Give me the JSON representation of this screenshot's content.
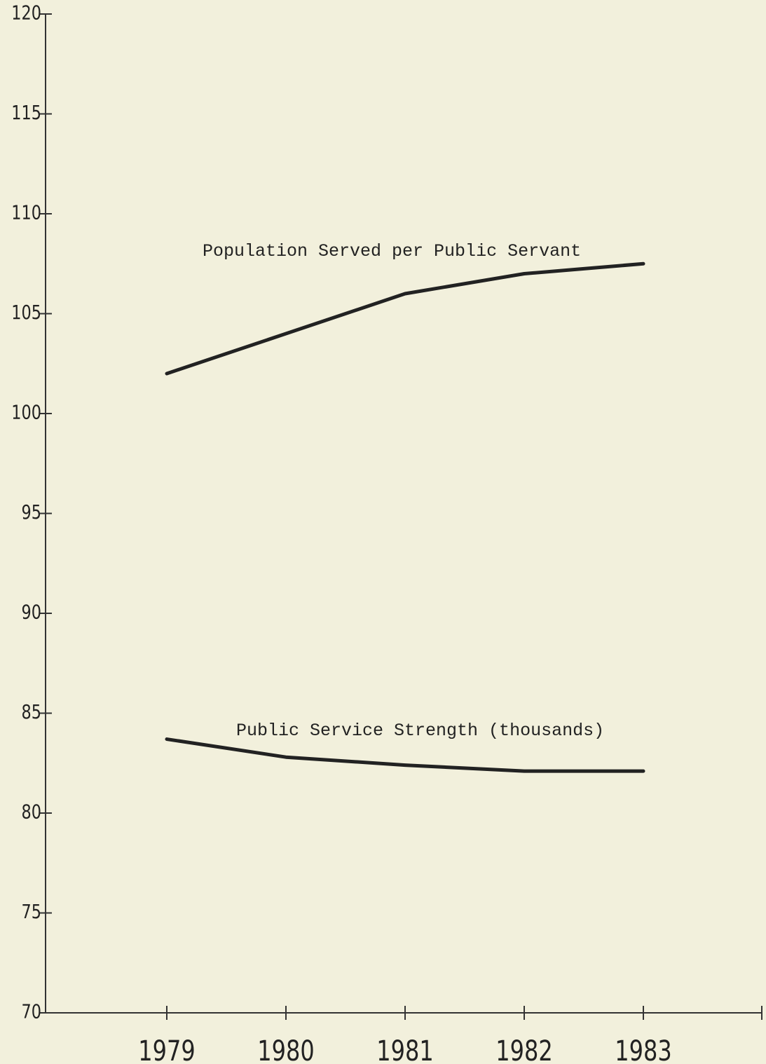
{
  "chart_data": {
    "type": "line",
    "categories": [
      "1979",
      "1980",
      "1981",
      "1982",
      "1983"
    ],
    "series": [
      {
        "name": "Population Served per Public Servant",
        "color": "#222222",
        "values": [
          102,
          104,
          106,
          107,
          107.5
        ]
      },
      {
        "name": "Public Service Strength (thousands)",
        "color": "#222222",
        "values": [
          83.7,
          82.8,
          82.4,
          82.1,
          82.1
        ]
      }
    ],
    "ylim": [
      70,
      120
    ],
    "yticks": [
      70,
      75,
      80,
      85,
      90,
      95,
      100,
      105,
      110,
      115,
      120
    ],
    "grid": false
  }
}
